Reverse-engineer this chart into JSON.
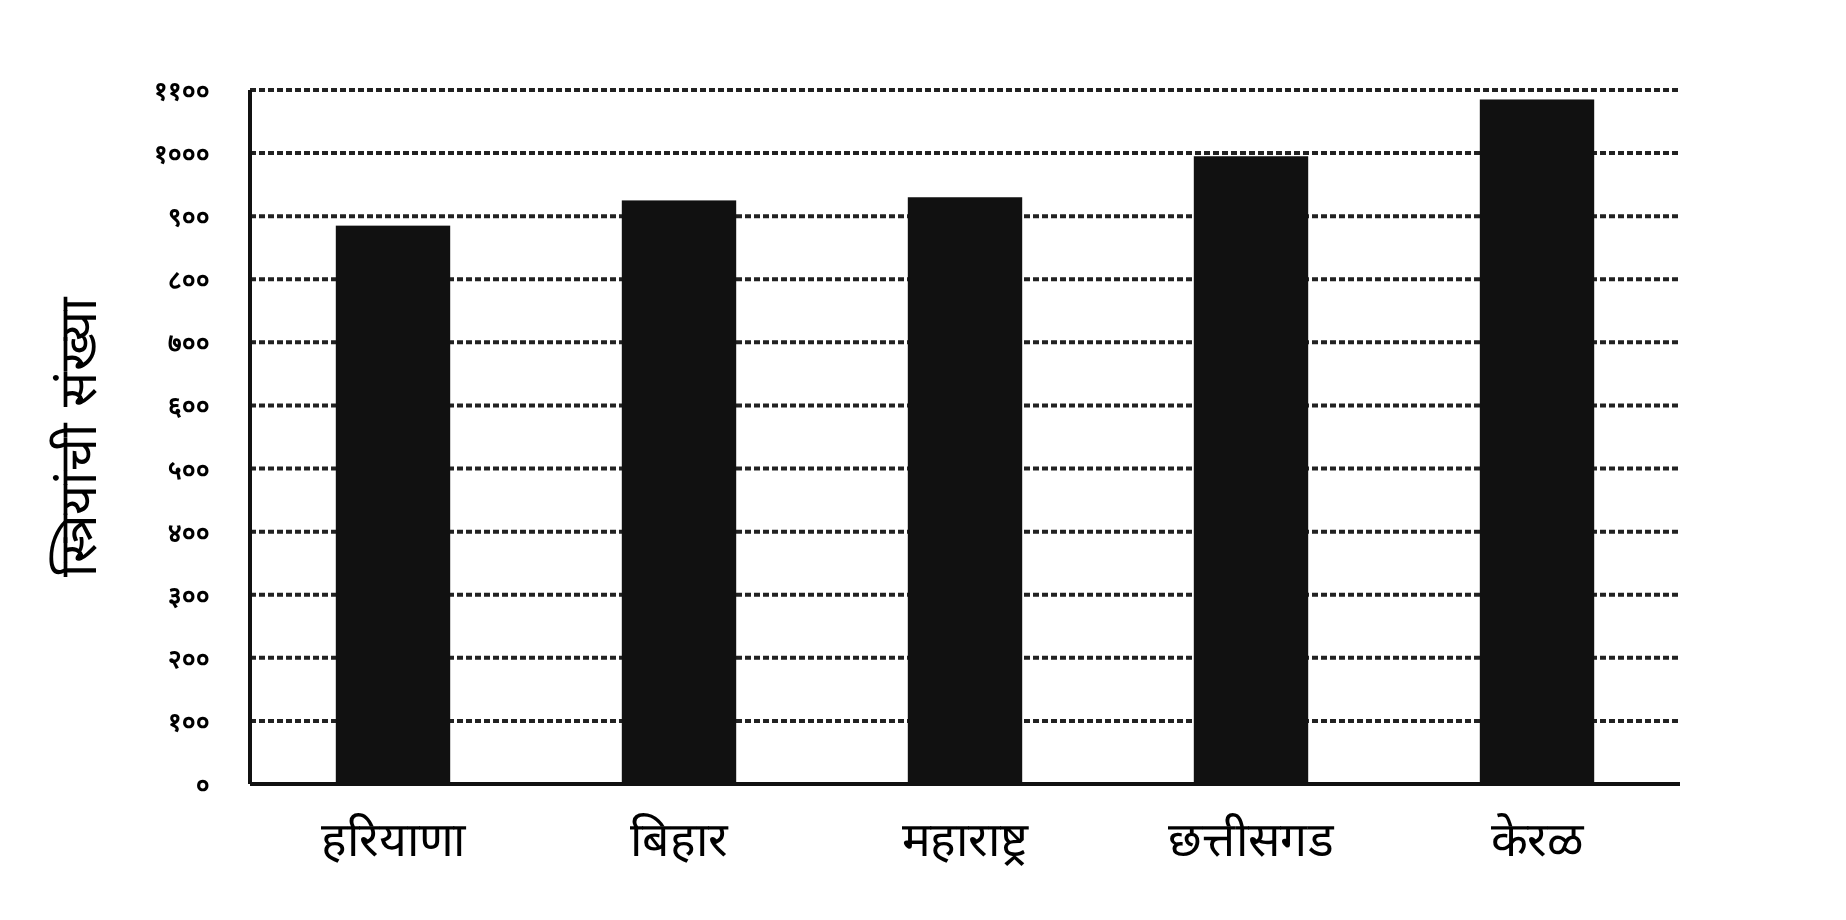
{
  "chart_data": {
    "type": "bar",
    "ylabel": "स्त्रियांची संख्या",
    "categories": [
      "हरियाणा",
      "बिहार",
      "महाराष्ट्र",
      "छत्तीसगड",
      "केरळ"
    ],
    "values": [
      885,
      925,
      930,
      995,
      1085
    ],
    "color": "#111111",
    "ylim": [
      0,
      1100
    ],
    "yticks": [
      {
        "value": 0,
        "label": "०"
      },
      {
        "value": 100,
        "label": "१००"
      },
      {
        "value": 200,
        "label": "२००"
      },
      {
        "value": 300,
        "label": "३००"
      },
      {
        "value": 400,
        "label": "४००"
      },
      {
        "value": 500,
        "label": "५००"
      },
      {
        "value": 600,
        "label": "६००"
      },
      {
        "value": 700,
        "label": "७००"
      },
      {
        "value": 800,
        "label": "८००"
      },
      {
        "value": 900,
        "label": "९००"
      },
      {
        "value": 1000,
        "label": "१०००"
      },
      {
        "value": 1100,
        "label": "११००"
      }
    ],
    "grid": "y",
    "line_style": "dashed"
  }
}
